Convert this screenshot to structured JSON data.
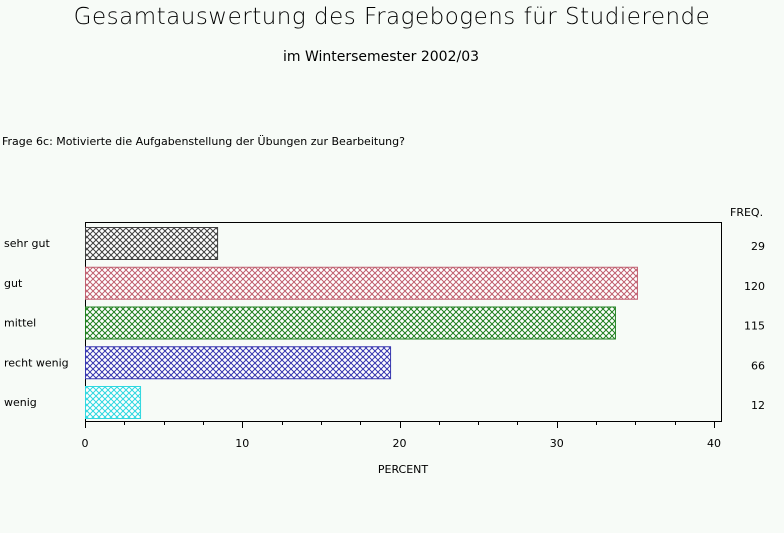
{
  "title": "Gesamtauswertung des Fragebogens für Studierende",
  "subtitle": "im Wintersemester 2002/03",
  "question": "Frage 6c: Motivierte die Aufgabenstellung der Übungen zur Bearbeitung?",
  "chart_data": {
    "type": "bar",
    "orientation": "horizontal",
    "categories": [
      "sehr gut",
      "gut",
      "mittel",
      "recht wenig",
      "wenig"
    ],
    "values": [
      8.4,
      35.1,
      33.7,
      19.4,
      3.5
    ],
    "freq_header": "FREQ.",
    "freq": [
      "29",
      "120",
      "115",
      "66",
      "12"
    ],
    "colors": [
      "#404040",
      "#c06070",
      "#208020",
      "#3838b0",
      "#30d8e0"
    ],
    "xlabel": "PERCENT",
    "xlim": [
      0,
      40
    ],
    "xticks": [
      "0",
      "10",
      "20",
      "30",
      "40"
    ],
    "grid": false
  }
}
